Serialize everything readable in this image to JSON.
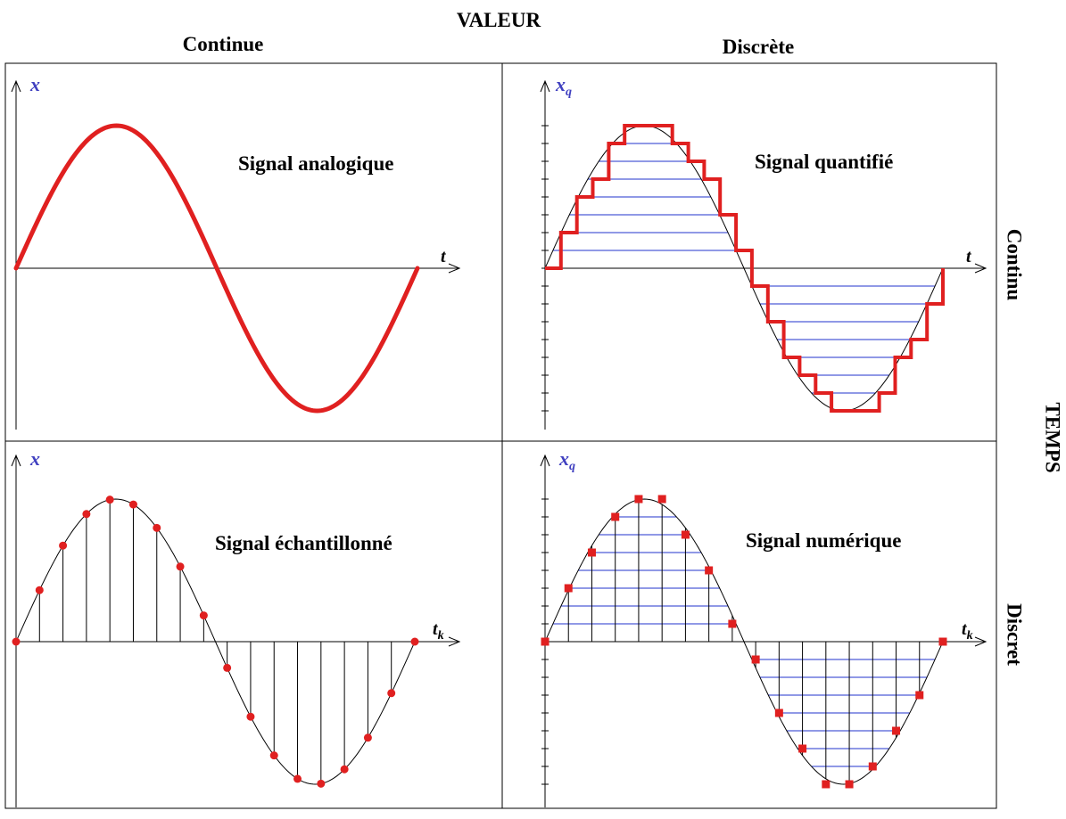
{
  "header": {
    "top_title": "VALEUR",
    "col_continuous": "Continue",
    "col_discrete": "Discrète",
    "right_title": "TEMPS",
    "row_continuous": "Continu",
    "row_discrete": "Discret"
  },
  "panels": {
    "analog": {
      "title": "Signal analogique",
      "y_axis": "x",
      "x_axis": "t"
    },
    "quantized": {
      "title": "Signal quantifié",
      "y_axis": "x",
      "y_sub": "q",
      "x_axis": "t"
    },
    "sampled": {
      "title": "Signal échantillonné",
      "y_axis": "x",
      "x_axis": "t",
      "x_sub": "k"
    },
    "digital": {
      "title": "Signal numérique",
      "y_axis": "x",
      "y_sub": "q",
      "x_axis": "t",
      "x_sub": "k"
    }
  },
  "colors": {
    "signal": "#e02020",
    "axis_label": "#4040c0",
    "grid_line": "#2233cc",
    "line": "#000000"
  },
  "signal": {
    "shape": "sine",
    "periods": 1,
    "sample_count": 18,
    "quantization_levels": 8
  }
}
